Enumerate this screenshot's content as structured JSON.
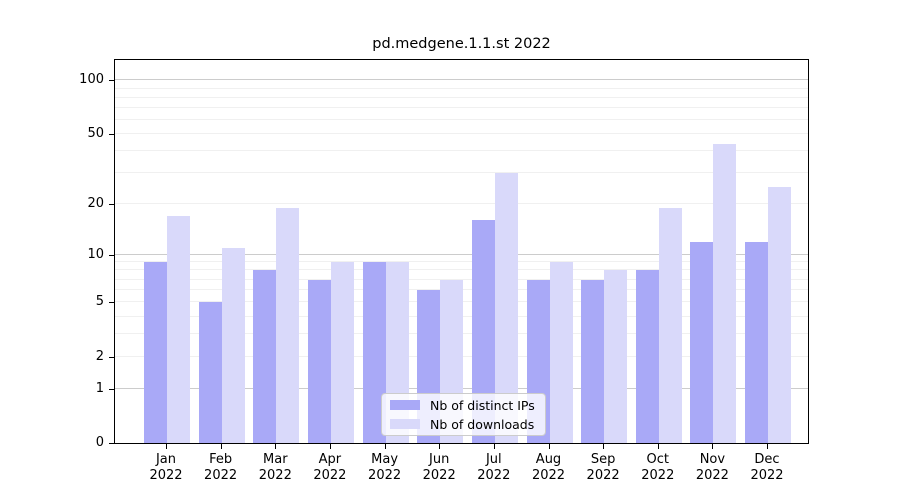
{
  "chart_data": {
    "type": "bar",
    "title": "pd.medgene.1.1.st 2022",
    "yscale": "log10(1+value)",
    "ylim": [
      0,
      130
    ],
    "y_ticks": [
      100,
      50,
      20,
      10,
      5,
      2,
      1,
      0
    ],
    "grid": "horizontal, log major (1,10,100) and minor (2-9, 20-90)",
    "legend_position": "lower center",
    "x_tick_year": "2022",
    "categories": [
      "Jan",
      "Feb",
      "Mar",
      "Apr",
      "May",
      "Jun",
      "Jul",
      "Aug",
      "Sep",
      "Oct",
      "Nov",
      "Dec"
    ],
    "series": [
      {
        "name": "Nb of distinct IPs",
        "color": "#a9a9f7",
        "values": [
          9,
          5,
          8,
          7,
          9,
          6,
          16,
          7,
          7,
          8,
          12,
          12
        ]
      },
      {
        "name": "Nb of downloads",
        "color": "#d9d9fa",
        "values": [
          17,
          11,
          19,
          9,
          9,
          7,
          30,
          9,
          8,
          19,
          44,
          25
        ]
      }
    ],
    "colors": {
      "axis": "#000000",
      "grid_major": "#cccccc",
      "grid_minor": "#f0f0f0",
      "background": "#ffffff"
    }
  }
}
